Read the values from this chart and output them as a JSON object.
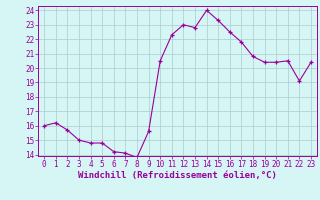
{
  "x": [
    0,
    1,
    2,
    3,
    4,
    5,
    6,
    7,
    8,
    9,
    10,
    11,
    12,
    13,
    14,
    15,
    16,
    17,
    18,
    19,
    20,
    21,
    22,
    23
  ],
  "y": [
    16.0,
    16.2,
    15.7,
    15.0,
    14.8,
    14.8,
    14.2,
    14.1,
    13.8,
    15.6,
    20.5,
    22.3,
    23.0,
    22.8,
    24.0,
    23.3,
    22.5,
    21.8,
    20.8,
    20.4,
    20.4,
    20.5,
    19.1,
    20.4
  ],
  "line_color": "#990099",
  "marker": "+",
  "marker_size": 3,
  "bg_color": "#d6f5f5",
  "grid_color": "#aacccc",
  "xlabel": "Windchill (Refroidissement éolien,°C)",
  "xlabel_color": "#990099",
  "ylim": [
    14,
    24
  ],
  "xlim": [
    -0.5,
    23.5
  ],
  "yticks": [
    14,
    15,
    16,
    17,
    18,
    19,
    20,
    21,
    22,
    23,
    24
  ],
  "xticks": [
    0,
    1,
    2,
    3,
    4,
    5,
    6,
    7,
    8,
    9,
    10,
    11,
    12,
    13,
    14,
    15,
    16,
    17,
    18,
    19,
    20,
    21,
    22,
    23
  ],
  "tick_label_size": 5.5,
  "xlabel_size": 6.5,
  "axis_color": "#990099",
  "spine_color": "#990099",
  "linewidth": 0.8,
  "marker_edge_width": 0.9
}
